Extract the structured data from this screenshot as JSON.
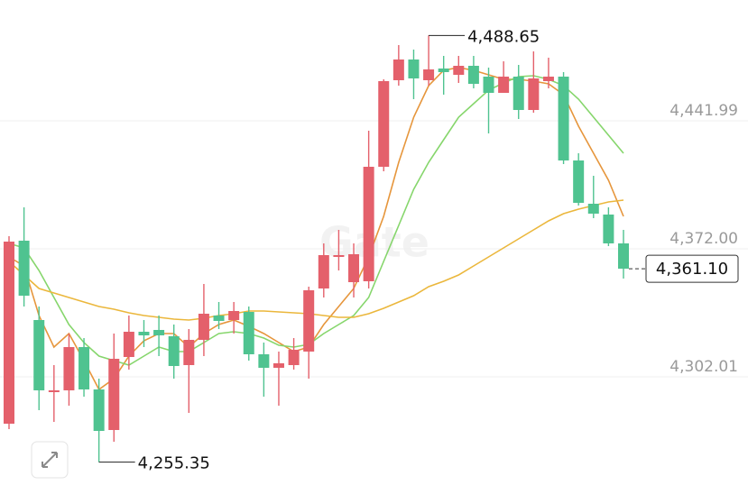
{
  "chart_data": {
    "type": "candlestick",
    "watermark": "Gate",
    "up_color": "#e4606b",
    "down_color": "#4fc390",
    "ylim": [
      4242.85,
      4508.03
    ],
    "yticks": [
      {
        "value": 4302.01,
        "label": "4,302.01"
      },
      {
        "value": 4372.0,
        "label": "4,372.00"
      },
      {
        "value": 4441.99,
        "label": "4,441.99"
      }
    ],
    "grid": true,
    "open": [
      4276.37,
      4376.43,
      4333.05,
      4293.62,
      4294.6,
      4318.26,
      4295.1,
      4272.92,
      4312.84,
      4326.64,
      4327.63,
      4324.18,
      4308.41,
      4322.21,
      4335.51,
      4333.05,
      4337.49,
      4314.32,
      4306.93,
      4308.41,
      4315.8,
      4350.3,
      4367.55,
      4353.75,
      4354.25,
      4416.84,
      4464.16,
      4475.5,
      4464.16,
      4470.57,
      4467.12,
      4472.05,
      4466.13,
      4457.26,
      4466.13,
      4447.9,
      4463.67,
      4466.13,
      4420.29,
      4396.63,
      4390.72,
      4374.95
    ],
    "high": [
      4378.89,
      4394.66,
      4340.44,
      4308.41,
      4325.66,
      4323.19,
      4301.01,
      4325.66,
      4335.51,
      4333.05,
      4335.51,
      4330.59,
      4328.12,
      4352.77,
      4342.91,
      4342.91,
      4340.44,
      4320.73,
      4315.8,
      4323.19,
      4351.29,
      4374.95,
      4382.34,
      4374.95,
      4436.56,
      4464.65,
      4483.38,
      4480.92,
      4488.65,
      4477.47,
      4477.47,
      4477.47,
      4471.06,
      4474.51,
      4472.54,
      4479.93,
      4476.48,
      4468.6,
      4424.24,
      4411.91,
      4394.66,
      4382.34
    ],
    "low": [
      4273.41,
      4340.44,
      4283.76,
      4277.35,
      4286.22,
      4291.15,
      4255.35,
      4266.51,
      4305.94,
      4318.26,
      4313.33,
      4301.01,
      4282.28,
      4313.33,
      4328.12,
      4325.66,
      4310.87,
      4291.15,
      4286.22,
      4305.94,
      4301.01,
      4345.37,
      4360.16,
      4345.37,
      4350.3,
      4414.38,
      4461.2,
      4453.81,
      4461.2,
      4456.28,
      4462.68,
      4459.73,
      4435.08,
      4458.74,
      4442.97,
      4446.42,
      4459.73,
      4418.32,
      4395.65,
      4388.75,
      4373.47,
      4355.72
    ],
    "close": [
      4375.93,
      4346.36,
      4294.6,
      4294.6,
      4318.26,
      4295.1,
      4272.42,
      4311.86,
      4326.64,
      4324.67,
      4324.67,
      4307.91,
      4322.21,
      4336.5,
      4332.56,
      4337.98,
      4314.32,
      4306.93,
      4309.39,
      4316.78,
      4349.32,
      4368.54,
      4368.54,
      4369.03,
      4416.84,
      4463.67,
      4475.5,
      4465.15,
      4470.08,
      4468.6,
      4472.05,
      4462.19,
      4457.26,
      4466.13,
      4447.9,
      4465.15,
      4466.13,
      4420.29,
      4397.13,
      4391.21,
      4374.95,
      4361.1
    ],
    "lines": [
      {
        "color": "#e6963c",
        "values": [
          4367.55,
          4362.62,
          4335.51,
          4318.26,
          4325.66,
          4310.87,
          4295.1,
          4301.01,
          4313.33,
          4321.71,
          4325.66,
          4325.66,
          4318.26,
          4325.66,
          4330.59,
          4333.05,
          4329.6,
          4325.66,
          4320.73,
          4315.8,
          4318.26,
          4330.59,
          4340.44,
          4350.3,
          4367.55,
          4389.73,
          4419.31,
          4443.95,
          4461.2,
          4469.58,
          4471.06,
          4469.58,
          4467.12,
          4464.65,
          4464.65,
          4463.67,
          4462.19,
          4456.28,
          4439.02,
          4424.24,
          4409.45,
          4389.73
        ]
      },
      {
        "color": "#86d66c",
        "values": [
          4374.95,
          4372.48,
          4360.16,
          4345.37,
          4330.59,
          4320.73,
          4313.33,
          4310.87,
          4308.41,
          4313.33,
          4318.26,
          4315.8,
          4315.8,
          4320.73,
          4325.66,
          4326.64,
          4325.66,
          4323.19,
          4319.25,
          4318.26,
          4319.74,
          4325.66,
          4330.59,
          4335.51,
          4345.37,
          4365.09,
          4384.81,
          4404.52,
          4419.31,
          4431.63,
          4443.95,
          4451.35,
          4458.74,
          4462.68,
          4466.13,
          4466.63,
          4464.65,
          4461.2,
          4453.81,
          4443.95,
          4434.1,
          4424.24
        ]
      },
      {
        "color": "#ebb73c",
        "values": [
          4365.09,
          4357.7,
          4350.3,
          4347.84,
          4345.37,
          4342.91,
          4340.44,
          4338.97,
          4336.99,
          4335.51,
          4334.53,
          4333.54,
          4333.05,
          4334.04,
          4335.51,
          4336.5,
          4337.98,
          4337.98,
          4337.49,
          4336.99,
          4336.5,
          4335.51,
          4334.53,
          4334.53,
          4336.5,
          4339.46,
          4342.91,
          4346.36,
          4351.29,
          4354.25,
          4357.7,
          4362.62,
          4367.55,
          4372.48,
          4377.41,
          4382.34,
          4387.27,
          4391.21,
          4393.68,
          4395.65,
          4397.62,
          4398.61
        ]
      }
    ],
    "high_label": "4,488.65",
    "low_label": "4,255.35",
    "last_label": "4,361.10"
  }
}
